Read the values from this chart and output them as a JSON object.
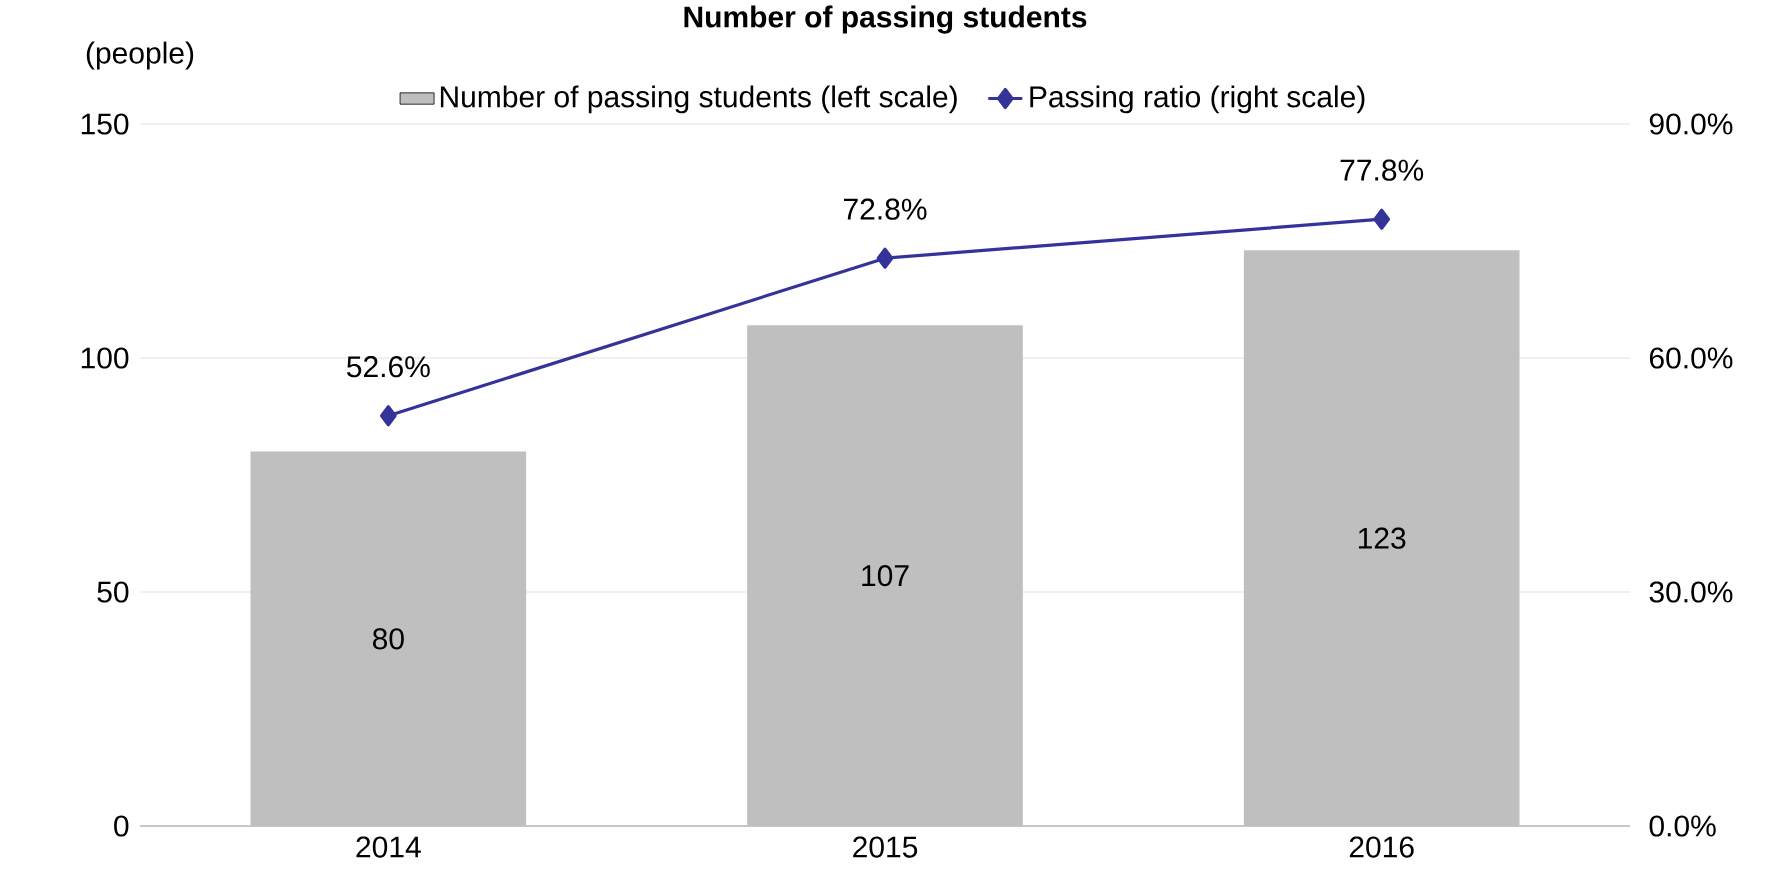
{
  "chart_data": {
    "type": "bar",
    "title": "Number of passing students",
    "ylabel": "(people)",
    "categories": [
      "2014",
      "2015",
      "2016"
    ],
    "series": [
      {
        "name": "Number of passing students (left scale)",
        "color": "#bfbfbf",
        "values": [
          80,
          107,
          123
        ],
        "value_labels": [
          "80",
          "107",
          "123"
        ]
      },
      {
        "name": "Passing ratio (right scale)",
        "type": "line",
        "axis": "y2",
        "color": "#333399",
        "marker": "diamond",
        "values": [
          52.6,
          72.8,
          77.8
        ],
        "value_labels": [
          "52.6%",
          "72.8%",
          "77.8%"
        ]
      }
    ],
    "ylim": [
      0,
      150
    ],
    "yticks": [
      0,
      50,
      100,
      150
    ],
    "y2lim": [
      0,
      90
    ],
    "y2ticks": [
      {
        "value": 0,
        "label": "0.0%"
      },
      {
        "value": 30,
        "label": "30.0%"
      },
      {
        "value": 60,
        "label": "60.0%"
      },
      {
        "value": 90,
        "label": "90.0%"
      }
    ],
    "grid": "y",
    "legend": "top"
  }
}
